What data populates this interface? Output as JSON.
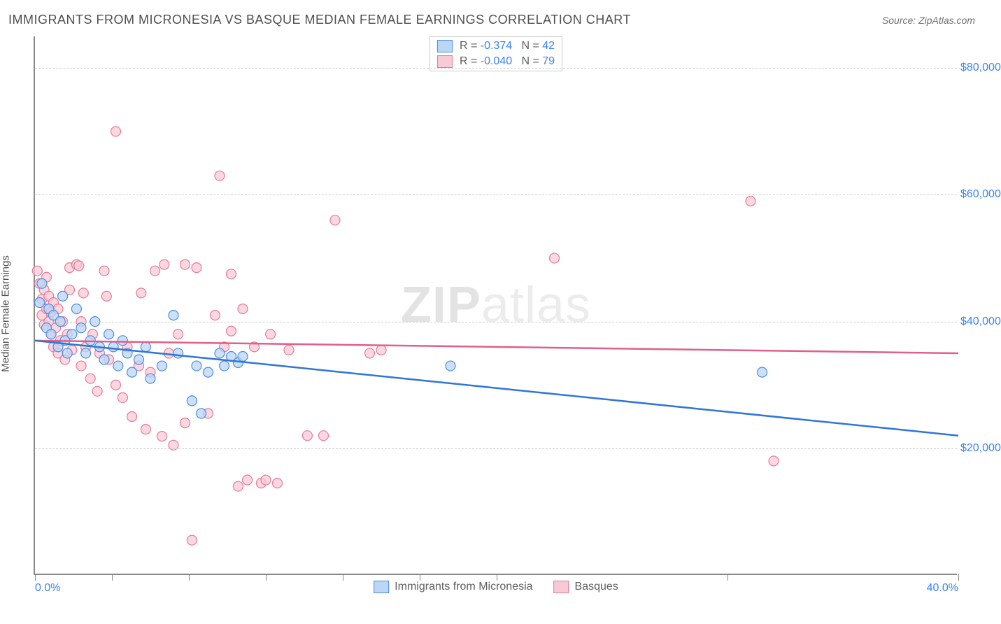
{
  "header": {
    "title": "IMMIGRANTS FROM MICRONESIA VS BASQUE MEDIAN FEMALE EARNINGS CORRELATION CHART",
    "source": "Source: ZipAtlas.com"
  },
  "y_axis": {
    "label": "Median Female Earnings",
    "min": 0,
    "max": 85000,
    "ticks": [
      20000,
      40000,
      60000,
      80000
    ],
    "tick_fmt": "$"
  },
  "x_axis": {
    "min": 0,
    "max": 40,
    "ticks_visible": [
      0,
      3.34,
      6.67,
      10.0,
      13.34,
      16.67,
      20.0,
      30.0,
      40.0
    ],
    "labels": [
      {
        "pos": 0,
        "text": "0.0%"
      },
      {
        "pos": 40,
        "text": "40.0%"
      }
    ]
  },
  "series": [
    {
      "key": "micronesia",
      "label": "Immigrants from Micronesia",
      "R": "-0.374",
      "N": "42",
      "marker_fill": "#bcd6f5",
      "marker_stroke": "#4a8de8",
      "line_color": "#2f76d6",
      "radius": 7,
      "trend": {
        "x1": 0,
        "y1": 37000,
        "x2": 40,
        "y2": 22000
      },
      "points": [
        [
          0.2,
          43000
        ],
        [
          0.3,
          46000
        ],
        [
          0.5,
          39000
        ],
        [
          0.6,
          42000
        ],
        [
          0.7,
          38000
        ],
        [
          0.8,
          41000
        ],
        [
          1.0,
          36000
        ],
        [
          1.1,
          40000
        ],
        [
          1.2,
          44000
        ],
        [
          1.3,
          37000
        ],
        [
          1.4,
          35000
        ],
        [
          1.6,
          38000
        ],
        [
          1.8,
          42000
        ],
        [
          2.0,
          39000
        ],
        [
          2.2,
          35000
        ],
        [
          2.4,
          37000
        ],
        [
          2.6,
          40000
        ],
        [
          2.8,
          36000
        ],
        [
          3.0,
          34000
        ],
        [
          3.2,
          38000
        ],
        [
          3.4,
          36000
        ],
        [
          3.6,
          33000
        ],
        [
          3.8,
          37000
        ],
        [
          4.0,
          35000
        ],
        [
          4.2,
          32000
        ],
        [
          4.5,
          34000
        ],
        [
          4.8,
          36000
        ],
        [
          5.0,
          31000
        ],
        [
          5.5,
          33000
        ],
        [
          6.0,
          41000
        ],
        [
          6.2,
          35000
        ],
        [
          6.8,
          27500
        ],
        [
          7.0,
          33000
        ],
        [
          7.2,
          25500
        ],
        [
          7.5,
          32000
        ],
        [
          8.0,
          35000
        ],
        [
          8.2,
          33000
        ],
        [
          8.5,
          34500
        ],
        [
          8.8,
          33500
        ],
        [
          9.0,
          34500
        ],
        [
          18.0,
          33000
        ],
        [
          31.5,
          32000
        ]
      ]
    },
    {
      "key": "basques",
      "label": "Basques",
      "R": "-0.040",
      "N": "79",
      "marker_fill": "#f7cbd6",
      "marker_stroke": "#e87a9a",
      "line_color": "#e15f88",
      "radius": 7,
      "trend": {
        "x1": 0,
        "y1": 37000,
        "x2": 40,
        "y2": 35000
      },
      "points": [
        [
          0.1,
          48000
        ],
        [
          0.2,
          46000
        ],
        [
          0.3,
          43500
        ],
        [
          0.3,
          41000
        ],
        [
          0.4,
          45000
        ],
        [
          0.4,
          39500
        ],
        [
          0.5,
          42000
        ],
        [
          0.5,
          47000
        ],
        [
          0.6,
          40000
        ],
        [
          0.6,
          44000
        ],
        [
          0.7,
          38000
        ],
        [
          0.7,
          41500
        ],
        [
          0.8,
          36000
        ],
        [
          0.8,
          43000
        ],
        [
          0.9,
          39000
        ],
        [
          1.0,
          35000
        ],
        [
          1.0,
          42000
        ],
        [
          1.1,
          37000
        ],
        [
          1.2,
          40000
        ],
        [
          1.3,
          34000
        ],
        [
          1.4,
          38000
        ],
        [
          1.5,
          48500
        ],
        [
          1.6,
          35500
        ],
        [
          1.8,
          49000
        ],
        [
          2.0,
          33000
        ],
        [
          2.0,
          40000
        ],
        [
          2.2,
          36000
        ],
        [
          2.4,
          31000
        ],
        [
          2.5,
          38000
        ],
        [
          2.7,
          29000
        ],
        [
          2.8,
          35000
        ],
        [
          3.0,
          48000
        ],
        [
          3.2,
          34000
        ],
        [
          3.5,
          70000
        ],
        [
          3.5,
          30000
        ],
        [
          3.8,
          28000
        ],
        [
          4.0,
          36000
        ],
        [
          4.2,
          25000
        ],
        [
          4.5,
          33000
        ],
        [
          4.8,
          23000
        ],
        [
          5.0,
          32000
        ],
        [
          5.2,
          48000
        ],
        [
          5.5,
          21900
        ],
        [
          5.6,
          49000
        ],
        [
          5.8,
          35000
        ],
        [
          6.0,
          20500
        ],
        [
          6.2,
          38000
        ],
        [
          6.5,
          49000
        ],
        [
          6.5,
          24000
        ],
        [
          6.8,
          5500
        ],
        [
          7.0,
          48500
        ],
        [
          7.5,
          25500
        ],
        [
          7.8,
          41000
        ],
        [
          8.0,
          63000
        ],
        [
          8.2,
          36000
        ],
        [
          8.5,
          38500
        ],
        [
          8.5,
          47500
        ],
        [
          8.8,
          14000
        ],
        [
          9.0,
          42000
        ],
        [
          9.2,
          15000
        ],
        [
          9.5,
          36000
        ],
        [
          9.8,
          14500
        ],
        [
          10.0,
          15000
        ],
        [
          10.2,
          38000
        ],
        [
          10.5,
          14500
        ],
        [
          11.0,
          35500
        ],
        [
          11.8,
          22000
        ],
        [
          12.5,
          22000
        ],
        [
          13.0,
          56000
        ],
        [
          14.5,
          35000
        ],
        [
          15.0,
          35500
        ],
        [
          22.5,
          50000
        ],
        [
          31.0,
          59000
        ],
        [
          32.0,
          18000
        ],
        [
          1.5,
          45000
        ],
        [
          2.1,
          44500
        ],
        [
          3.1,
          44000
        ],
        [
          4.6,
          44500
        ],
        [
          1.9,
          48800
        ]
      ]
    }
  ],
  "watermark": {
    "part1": "ZIP",
    "part2": "atlas"
  },
  "grid_color": "#d0d0d0",
  "axis_color": "#888888",
  "background_color": "#ffffff"
}
